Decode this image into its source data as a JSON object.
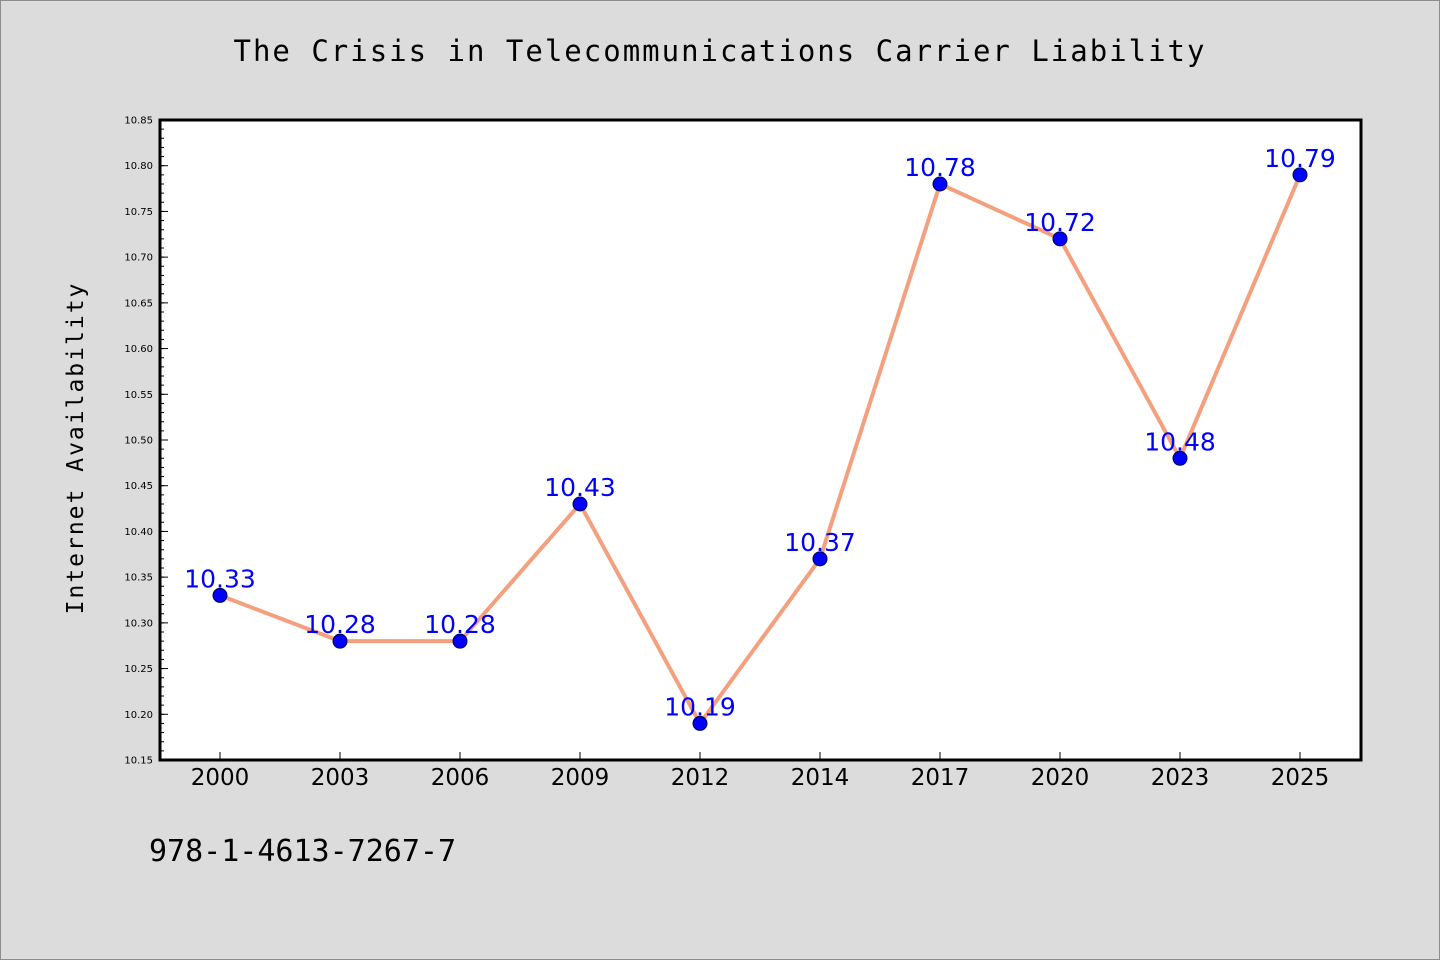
{
  "chart_data": {
    "type": "line",
    "title": "The Crisis in Telecommunications Carrier Liability",
    "xlabel": "",
    "ylabel": "Internet Availability",
    "categories": [
      "2000",
      "2003",
      "2006",
      "2009",
      "2012",
      "2014",
      "2017",
      "2020",
      "2023",
      "2025"
    ],
    "series": [
      {
        "values": [
          10.33,
          10.28,
          10.28,
          10.43,
          10.19,
          10.37,
          10.78,
          10.72,
          10.48,
          10.79
        ],
        "data_labels": [
          "10.33",
          "10.28",
          "10.28",
          "10.43",
          "10.19",
          "10.37",
          "10.78",
          "10.72",
          "10.48",
          "10.79"
        ]
      }
    ],
    "ylim": [
      10.15,
      10.85
    ],
    "yticks": [
      "10.15",
      "10.20",
      "10.25",
      "10.30",
      "10.35",
      "10.40",
      "10.45",
      "10.50",
      "10.55",
      "10.60",
      "10.65",
      "10.70",
      "10.75",
      "10.80",
      "10.85"
    ],
    "grid": false,
    "legend": "none",
    "colors": {
      "line": "#f4a07e",
      "marker": "#0000ff",
      "data_label": "#0000ff",
      "plot_background": "#ffffff",
      "figure_background": "#dcdcdc"
    }
  },
  "footer": {
    "code": "978-1-4613-7267-7"
  }
}
